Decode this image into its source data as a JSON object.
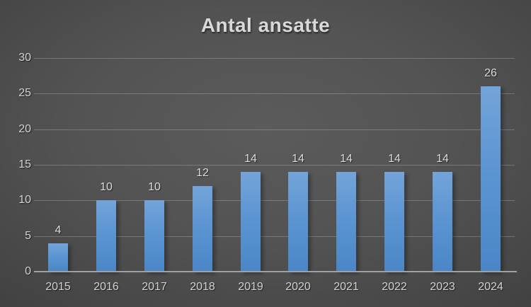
{
  "title": "Antal ansatte",
  "chart_data": {
    "type": "bar",
    "title": "Antal ansatte",
    "categories": [
      "2015",
      "2016",
      "2017",
      "2018",
      "2019",
      "2020",
      "2021",
      "2022",
      "2023",
      "2024"
    ],
    "values": [
      4,
      10,
      10,
      12,
      14,
      14,
      14,
      14,
      14,
      26
    ],
    "xlabel": "",
    "ylabel": "",
    "ylim": [
      0,
      30
    ],
    "yticks": [
      0,
      5,
      10,
      15,
      20,
      25,
      30
    ],
    "grid": true,
    "legend_position": "none",
    "data_labels": true,
    "colors": {
      "bar_top": "#73a4d9",
      "bar_bottom": "#4a86c7",
      "background_center": "#5b5b5b",
      "background_edge": "#1f1f1f",
      "gridline": "#6f6f6f",
      "axis_line": "#a0a0a0",
      "text": "#d2d2d2",
      "title_text": "#d9d9d9"
    }
  }
}
